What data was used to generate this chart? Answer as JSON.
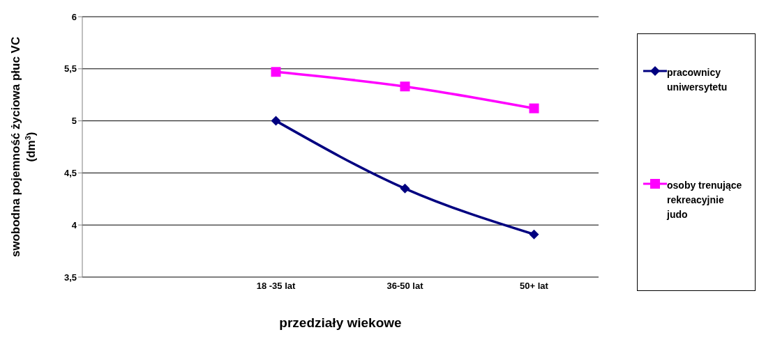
{
  "chart_data": {
    "type": "line",
    "xlabel": "przedziały wiekowe",
    "ylabel": "swobodna pojemność życiowa płuc VC (dm$^{3}$)",
    "categories": [
      null,
      "18 -35 lat",
      "36-50 lat",
      "50+ lat"
    ],
    "series": [
      {
        "name": "pracownicy uniwersytetu",
        "color": "#000080",
        "marker": "diamond",
        "values": [
          null,
          5.0,
          4.35,
          3.91
        ]
      },
      {
        "name": "osoby trenujące rekreacyjnie judo",
        "color": "#ff00ff",
        "marker": "square",
        "values": [
          null,
          5.47,
          5.33,
          5.12
        ]
      }
    ],
    "ylim": [
      3.5,
      6
    ],
    "yticks": [
      {
        "value": 3.5,
        "label": "3,5"
      },
      4,
      {
        "value": 4.5,
        "label": "4,5"
      },
      5,
      {
        "value": 5.5,
        "label": "5,5"
      },
      6
    ],
    "grid": "y",
    "legend": "right"
  }
}
